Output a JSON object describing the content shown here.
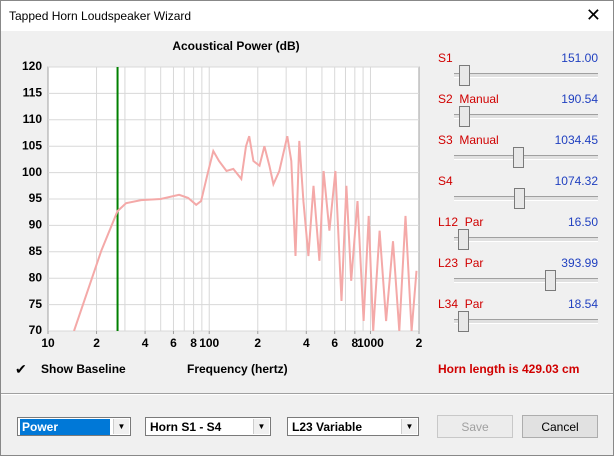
{
  "window": {
    "title": "Tapped Horn Loudspeaker Wizard"
  },
  "chart_data": {
    "type": "line",
    "title": "Acoustical Power (dB)",
    "x_label": "Frequency (hertz)",
    "xlog": true,
    "xlim": [
      10,
      2000
    ],
    "ylim": [
      70,
      120
    ],
    "xticks": [
      10,
      {
        "value": 20,
        "label": "2"
      },
      {
        "value": 40,
        "label": "4"
      },
      {
        "value": 60,
        "label": "6"
      },
      {
        "value": 80,
        "label": "8"
      },
      100,
      {
        "value": 200,
        "label": "2"
      },
      {
        "value": 400,
        "label": "4"
      },
      {
        "value": 600,
        "label": "6"
      },
      {
        "value": 800,
        "label": "8"
      },
      1000,
      {
        "value": 2000,
        "label": "2"
      }
    ],
    "x_grid": [
      20,
      30,
      40,
      50,
      60,
      70,
      80,
      90,
      100,
      200,
      300,
      400,
      500,
      600,
      700,
      800,
      900,
      1000
    ],
    "yticks": [
      70,
      75,
      80,
      85,
      90,
      95,
      100,
      105,
      110,
      115,
      120
    ],
    "grid": true,
    "vlines": [
      {
        "x": 27,
        "color": "#008000"
      }
    ],
    "series": [
      {
        "color": "#f4a9a8",
        "x": [
          14.5,
          21.4,
          27,
          30.5,
          37.8,
          50,
          65,
          74,
          83,
          89,
          97,
          106,
          115,
          128,
          141,
          158,
          169,
          177,
          188,
          205,
          220,
          236,
          250,
          272,
          305,
          323,
          343,
          362,
          384,
          412,
          443,
          482,
          512,
          556,
          606,
          661,
          709,
          760,
          831,
          907,
          975,
          1040,
          1140,
          1250,
          1380,
          1510,
          1650,
          1800,
          1930
        ],
        "values": [
          70,
          85.2,
          92.7,
          94.2,
          94.8,
          95,
          95.8,
          95.2,
          93.9,
          94.6,
          99.4,
          104.1,
          102.2,
          100.3,
          100.7,
          98.8,
          105,
          106.9,
          102.2,
          101.3,
          105,
          101.3,
          97.8,
          100.3,
          106.9,
          102.2,
          84.2,
          106,
          94.6,
          84.2,
          97.5,
          83.3,
          100.3,
          89,
          100.3,
          75.7,
          97.5,
          79.5,
          94.6,
          71.9,
          91.8,
          70,
          89,
          71.9,
          87,
          70,
          91.8,
          70,
          81.4
        ]
      }
    ]
  },
  "sliders": [
    {
      "label": "S1",
      "value": "151.00"
    },
    {
      "label": "S2  Manual",
      "value": "190.54"
    },
    {
      "label": "S3  Manual",
      "value": "1034.45"
    },
    {
      "label": "S4",
      "value": "1074.32"
    },
    {
      "label": "L12  Par",
      "value": "16.50"
    },
    {
      "label": "L23  Par",
      "value": "393.99"
    },
    {
      "label": "L34  Par",
      "value": "18.54"
    }
  ],
  "show_baseline": "Show Baseline",
  "status": "Horn length is 429.03 cm",
  "dropdowns": [
    "Power",
    "Horn S1 - S4",
    "L23 Variable"
  ],
  "buttons": [
    "Save",
    "Cancel"
  ]
}
